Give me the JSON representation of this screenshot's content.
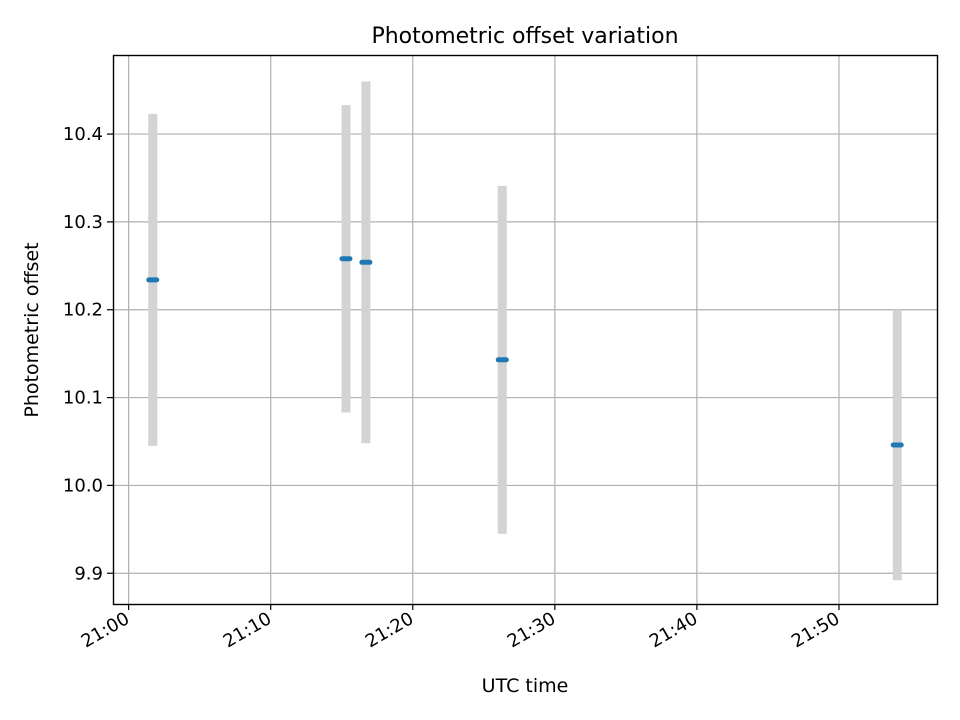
{
  "chart_data": {
    "type": "scatter",
    "title": "Photometric offset variation",
    "xlabel": "UTC time",
    "ylabel": "Photometric offset",
    "x_ticks": [
      "21:00",
      "21:10",
      "21:20",
      "21:30",
      "21:40",
      "21:50"
    ],
    "y_ticks": [
      "9.9",
      "10.0",
      "10.1",
      "10.2",
      "10.3",
      "10.4"
    ],
    "xlim": [
      "20:58.9",
      "21:56.9"
    ],
    "ylim": [
      9.865,
      10.49
    ],
    "grid": true,
    "series": [
      {
        "marker_color": "#1f77b4",
        "errorbar_color": "#d3d3d3",
        "points": [
          {
            "x": "21:01.7",
            "y": 10.234,
            "yerr": 0.189
          },
          {
            "x": "21:15.3",
            "y": 10.258,
            "yerr": 0.175
          },
          {
            "x": "21:16.7",
            "y": 10.254,
            "yerr": 0.206
          },
          {
            "x": "21:26.3",
            "y": 10.143,
            "yerr": 0.198
          },
          {
            "x": "21:54.1",
            "y": 10.046,
            "yerr": 0.154
          }
        ]
      }
    ]
  }
}
